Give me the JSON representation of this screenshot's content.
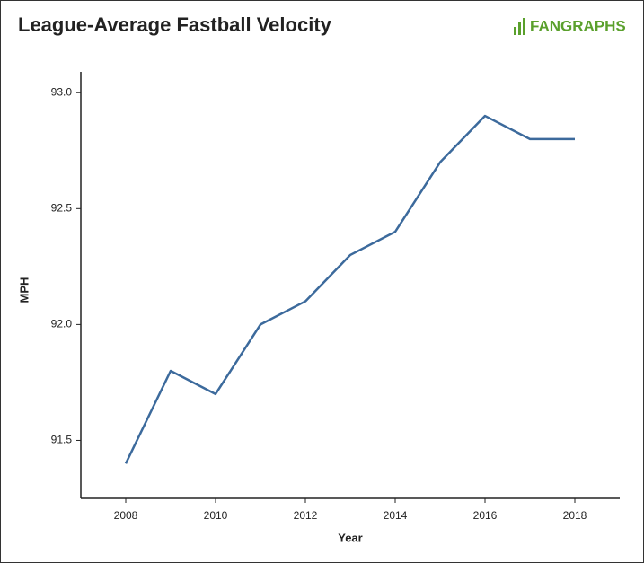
{
  "chart_data": {
    "type": "line",
    "title": "League-Average Fastball Velocity",
    "logo": "FANGRAPHS",
    "x_label": "Year",
    "y_label": "MPH",
    "x": [
      2008,
      2009,
      2010,
      2011,
      2012,
      2013,
      2014,
      2015,
      2016,
      2017,
      2018
    ],
    "series": [
      {
        "name": "Fastball Velocity",
        "color": "#3c6a9c",
        "values": [
          91.4,
          91.8,
          91.7,
          92.0,
          92.1,
          92.3,
          92.4,
          92.7,
          92.9,
          92.8,
          92.8
        ]
      }
    ],
    "xlim": [
      2007,
      2019
    ],
    "xticks": [
      2008,
      2010,
      2012,
      2014,
      2016,
      2018
    ],
    "ylim": [
      91.25,
      93.09
    ],
    "yticks": [
      {
        "value": 91.5,
        "label": "91.5"
      },
      {
        "value": 92,
        "label": "92.0"
      },
      {
        "value": 92.5,
        "label": "92.5"
      },
      {
        "value": 93,
        "label": "93.0"
      }
    ],
    "grid": false
  }
}
